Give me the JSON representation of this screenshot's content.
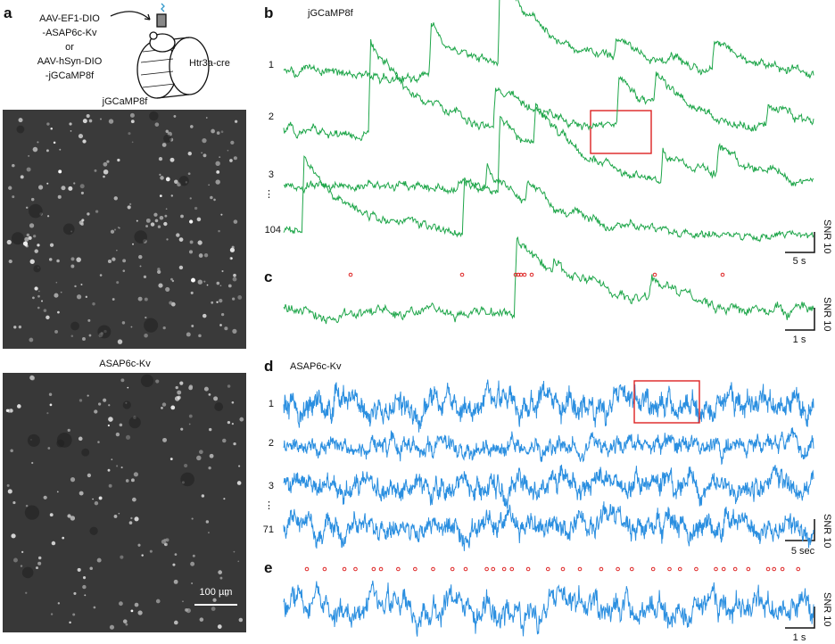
{
  "panel_a": {
    "label": "a",
    "construct_lines": [
      "AAV-EF1-DIO",
      "-ASAP6c-Kv",
      "or",
      "AAV-hSyn-DIO",
      "-jGCaMP8f"
    ],
    "mouse_line": "Htr3a-cre",
    "images": [
      {
        "title": "jGCaMP8f"
      },
      {
        "title": "ASAP6c-Kv",
        "scale_bar": "100 µm"
      }
    ]
  },
  "panel_b": {
    "label": "b",
    "title": "jGCaMP8f",
    "trace_labels": [
      "1",
      "2",
      "3",
      "⋮",
      "104"
    ],
    "scale_y": "SNR 10",
    "scale_x": "5 s"
  },
  "panel_c": {
    "label": "c",
    "scale_y": "SNR 10",
    "scale_x": "1 s"
  },
  "panel_d": {
    "label": "d",
    "title": "ASAP6c-Kv",
    "trace_labels": [
      "1",
      "2",
      "3",
      "⋮",
      "71"
    ],
    "scale_y": "SNR 10",
    "scale_x": "5 sec"
  },
  "panel_e": {
    "label": "e",
    "scale_y": "SNR 10",
    "scale_x": "1 s"
  }
}
